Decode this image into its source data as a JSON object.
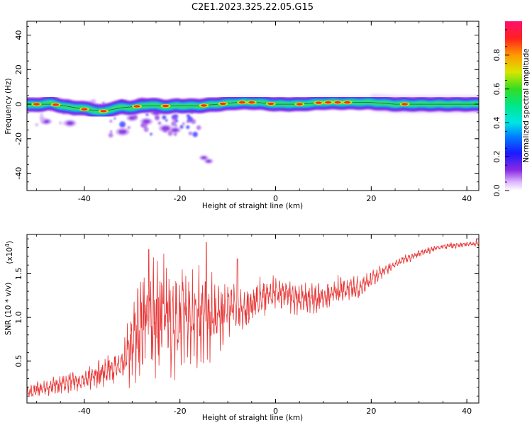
{
  "title": "C2E1.2023.325.22.05.G15",
  "colors": {
    "snr_line": "#e83535",
    "spectrogram_core": "#ff1a1a",
    "axis": "#000000"
  },
  "chart_data": [
    {
      "type": "heatmap",
      "xlabel": "Height of straight line (km)",
      "ylabel": "Frequency (Hz)",
      "xlim": [
        -52,
        42.5
      ],
      "ylim": [
        -50,
        48
      ],
      "x_ticks": [
        -40,
        -20,
        0,
        20,
        40
      ],
      "x_tick_labels": [
        "-40",
        "-20",
        "0",
        "20",
        "40"
      ],
      "y_ticks": [
        -40,
        -20,
        0,
        20,
        40
      ],
      "y_tick_labels": [
        "-40",
        "-20",
        "0",
        "20",
        "40"
      ],
      "colorbar": {
        "label": "Normalized spectral amplitude",
        "range": [
          0,
          1
        ],
        "ticks": [
          0,
          0.2,
          0.4,
          0.6,
          0.8
        ],
        "tick_labels": [
          "0.0",
          "0.2",
          "0.4",
          "0.6",
          "0.8"
        ]
      },
      "ridge": {
        "description_points_x": [
          -51,
          -47,
          -44,
          -40,
          -36,
          -32,
          -28,
          -24,
          -20,
          -16,
          -12,
          -8,
          -4,
          0,
          5,
          10,
          15,
          20,
          25,
          30,
          35,
          40,
          42
        ],
        "description_points_y": [
          0,
          0,
          -1,
          -3,
          -4,
          -2,
          -1,
          -1,
          -1,
          -1,
          0,
          1,
          1,
          0,
          0,
          1,
          1,
          1,
          0,
          0,
          0,
          0,
          0
        ],
        "peak_amplitude_x": [
          -50,
          -46,
          -40,
          -36,
          -29,
          -23,
          -15,
          -11,
          -7,
          -5,
          -1,
          5,
          9,
          11,
          13,
          15,
          27
        ]
      },
      "scatter_blobs": [
        {
          "x": -48,
          "y": -10,
          "amp": 0.2
        },
        {
          "x": -43,
          "y": -11,
          "amp": 0.25
        },
        {
          "x": -32,
          "y": -16,
          "amp": 0.3
        },
        {
          "x": -30,
          "y": -8,
          "amp": 0.2
        },
        {
          "x": -27,
          "y": -10,
          "amp": 0.25
        },
        {
          "x": -25,
          "y": -5,
          "amp": 0.2
        },
        {
          "x": -23,
          "y": -14,
          "amp": 0.3
        },
        {
          "x": -21,
          "y": -15,
          "amp": 0.2
        },
        {
          "x": -28,
          "y": 2,
          "amp": 0.25
        },
        {
          "x": -32,
          "y": 1,
          "amp": 0.2
        },
        {
          "x": -15,
          "y": -31,
          "amp": 0.1
        },
        {
          "x": -14,
          "y": -33,
          "amp": 0.1
        }
      ]
    },
    {
      "type": "line",
      "xlabel": "Height of straight line (km)",
      "ylabel": "SNR (10 * v/v)",
      "y_multiplier": "(x10",
      "y_multiplier_exp": "4",
      "y_multiplier_close": ")",
      "xlim": [
        -52,
        42.5
      ],
      "ylim": [
        200,
        19500
      ],
      "x_ticks": [
        -40,
        -20,
        0,
        20,
        40
      ],
      "x_tick_labels": [
        "-40",
        "-20",
        "0",
        "20",
        "40"
      ],
      "y_ticks": [
        5000,
        10000,
        15000
      ],
      "y_tick_labels": [
        "0.5",
        "1.0",
        "1.5"
      ],
      "series": [
        {
          "envelope_x": [
            -52,
            -48,
            -44,
            -40,
            -36,
            -32,
            -30,
            -28,
            -26,
            -24,
            -22,
            -20,
            -18,
            -16,
            -14,
            -12,
            -10,
            -8,
            -6,
            -4,
            -2,
            0,
            2,
            4,
            6,
            8,
            10,
            12,
            14,
            16,
            18,
            20,
            22,
            24,
            26,
            28,
            30,
            32,
            34,
            36,
            38,
            40,
            42
          ],
          "envelope_mean": [
            1400,
            2000,
            2500,
            2800,
            3800,
            4800,
            7000,
            9500,
            10500,
            10000,
            9800,
            10500,
            10000,
            9700,
            9700,
            9700,
            11000,
            11500,
            11000,
            12000,
            12500,
            12800,
            12700,
            12300,
            12200,
            12200,
            12300,
            12800,
            13300,
            13200,
            13400,
            14300,
            15200,
            15700,
            16400,
            16800,
            17300,
            17700,
            18000,
            18200,
            18300,
            18400,
            18400
          ],
          "envelope_amp": [
            700,
            900,
            1100,
            1400,
            1700,
            2000,
            4500,
            6500,
            7000,
            7500,
            7000,
            6000,
            5500,
            5500,
            5000,
            4000,
            3500,
            3000,
            2700,
            2500,
            2300,
            2000,
            1800,
            1800,
            1700,
            1700,
            1700,
            1600,
            1500,
            1400,
            1200,
            900,
            700,
            600,
            550,
            500,
            450,
            400,
            350,
            350,
            350,
            300,
            300
          ],
          "notable_peaks": [
            {
              "x": -26.5,
              "y": 17800
            },
            {
              "x": -14.5,
              "y": 18600
            },
            {
              "x": -8,
              "y": 16700
            },
            {
              "x": 42,
              "y": 19000
            }
          ]
        }
      ]
    }
  ]
}
